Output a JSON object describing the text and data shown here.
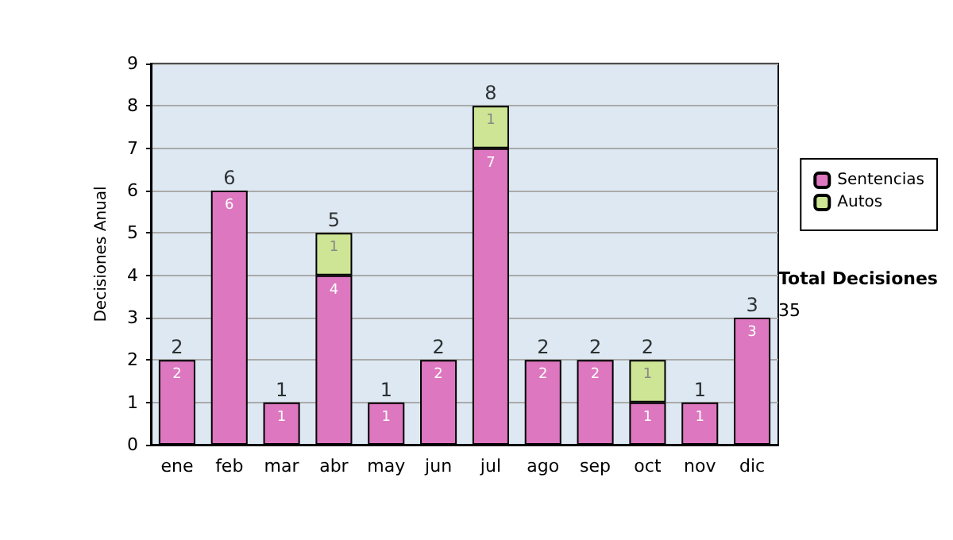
{
  "chart_data": {
    "type": "bar",
    "stacked": true,
    "ylabel": "Decisiones Anual",
    "categories": [
      "ene",
      "feb",
      "mar",
      "abr",
      "may",
      "jun",
      "jul",
      "ago",
      "sep",
      "oct",
      "nov",
      "dic"
    ],
    "series": [
      {
        "name": "Sentencias",
        "color": "#dd77bf",
        "values": [
          2,
          6,
          1,
          4,
          1,
          2,
          7,
          2,
          2,
          1,
          1,
          3
        ]
      },
      {
        "name": "Autos",
        "color": "#cde594",
        "values": [
          null,
          null,
          null,
          1,
          null,
          null,
          1,
          null,
          null,
          1,
          null,
          null
        ]
      }
    ],
    "totals": [
      "2",
      "6",
      "1",
      "5",
      "1",
      "2",
      "8",
      "2",
      "2",
      "2",
      "1",
      "3"
    ],
    "data_labels": true,
    "ylim": [
      0,
      9
    ],
    "yticks": [
      0,
      1,
      2,
      3,
      4,
      5,
      6,
      7,
      8,
      9
    ],
    "grid": "y",
    "legend": "right",
    "annotations": [
      "Total Decisiones",
      "35"
    ]
  }
}
